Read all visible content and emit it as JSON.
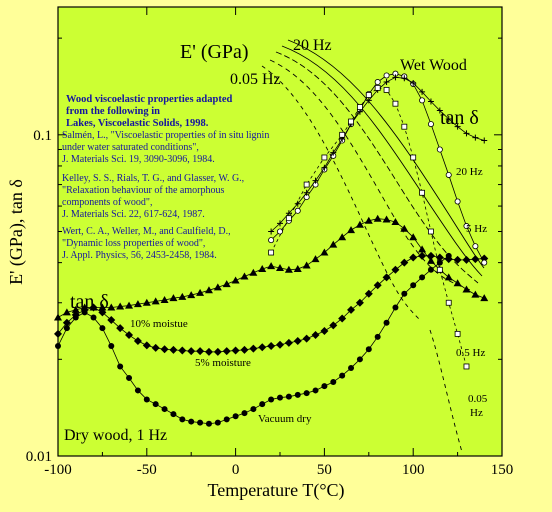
{
  "chart_data": {
    "type": "scatter",
    "xlabel": "Temperature T(°C)",
    "ylabel": "E' (GPa), tan δ",
    "xlim": [
      -100,
      150
    ],
    "ylim": [
      0.01,
      0.25
    ],
    "yscale": "log",
    "x_ticks": [
      "-100",
      "-50",
      "0",
      "50",
      "100",
      "150"
    ],
    "y_ticks": [
      "0.01",
      "0.1"
    ],
    "colors": {
      "background": "#ffff99",
      "plot_area": "#ccff33",
      "text_blue": "#1515a0"
    },
    "labels": {
      "eprime": "E' (GPa)",
      "freq_20_top": "20 Hz",
      "freq_005_top": "0.05 Hz",
      "wet_wood": "Wet Wood",
      "tan_delta_wet": "tan δ",
      "tan_delta_dry": "tan δ",
      "dry_wood": "Dry wood, 1 Hz",
      "freq_20": "20 Hz",
      "freq_5": "5 Hz",
      "freq_05": "0.5 Hz",
      "freq_005_a": "0.05",
      "freq_005_b": "Hz",
      "moist10": "10% moistue",
      "moist5": "5% moisture",
      "vacuum": "Vacuum dry"
    },
    "references": {
      "header": [
        "Wood viscoelastic properties adapted",
        "from the following in",
        "Lakes, Viscoelastic Solids, 1998."
      ],
      "ref1": [
        "Salmén, L., \"Viscoelastic properties of in situ  lignin",
        " under water saturated conditions\",",
        "J. Materials Sci. 19, 3090-3096, 1984."
      ],
      "ref2": [
        "Kelley, S. S., Rials, T. G., and Glasser, W. G.,",
        "\"Relaxation behaviour of the amorphous",
        " components of wood\",",
        "J. Materials Sci. 22, 617-624, 1987."
      ],
      "ref3": [
        "Wert, C. A., Weller, M., and Caulfield, D.,",
        "\"Dynamic loss properties of wood\",",
        "J. Appl. Physics, 56, 2453-2458, 1984."
      ]
    },
    "series": [
      {
        "marker": "circle-filled",
        "label": "Vacuum dry",
        "x": [
          -100,
          -95,
          -90,
          -85,
          -80,
          -75,
          -70,
          -65,
          -60,
          -55,
          -50,
          -45,
          -40,
          -35,
          -30,
          -25,
          -20,
          -15,
          -10,
          -5,
          0,
          5,
          10,
          15,
          20,
          25,
          30,
          35,
          40,
          45,
          50,
          55,
          60,
          65,
          70,
          75,
          80,
          85,
          90,
          95,
          100,
          105,
          110,
          115,
          120
        ],
        "y": [
          0.022,
          0.025,
          0.027,
          0.028,
          0.027,
          0.025,
          0.022,
          0.019,
          0.0175,
          0.016,
          0.015,
          0.0145,
          0.014,
          0.0135,
          0.013,
          0.0128,
          0.0127,
          0.0126,
          0.0127,
          0.013,
          0.0133,
          0.0136,
          0.014,
          0.0145,
          0.015,
          0.0152,
          0.0153,
          0.0155,
          0.0157,
          0.016,
          0.0165,
          0.017,
          0.0178,
          0.0188,
          0.02,
          0.0215,
          0.0235,
          0.026,
          0.029,
          0.032,
          0.034,
          0.036,
          0.038,
          0.04,
          0.042
        ]
      },
      {
        "marker": "diamond-filled",
        "label": "5% moisture",
        "x": [
          -100,
          -95,
          -90,
          -85,
          -80,
          -75,
          -70,
          -65,
          -60,
          -55,
          -50,
          -45,
          -40,
          -35,
          -30,
          -25,
          -20,
          -15,
          -10,
          -5,
          0,
          5,
          10,
          15,
          20,
          25,
          30,
          35,
          40,
          45,
          50,
          55,
          60,
          65,
          70,
          75,
          80,
          85,
          90,
          95,
          100,
          105,
          110,
          115,
          120,
          125,
          130,
          135,
          140
        ],
        "y": [
          0.024,
          0.026,
          0.0275,
          0.0285,
          0.029,
          0.028,
          0.0265,
          0.025,
          0.0238,
          0.0228,
          0.0221,
          0.0217,
          0.0215,
          0.0214,
          0.0213,
          0.0212,
          0.0212,
          0.0211,
          0.0211,
          0.0212,
          0.0213,
          0.0214,
          0.0216,
          0.0218,
          0.022,
          0.0222,
          0.0225,
          0.0228,
          0.0232,
          0.0238,
          0.0245,
          0.0255,
          0.0268,
          0.0285,
          0.03,
          0.032,
          0.034,
          0.036,
          0.038,
          0.04,
          0.0415,
          0.042,
          0.042,
          0.0415,
          0.041,
          0.0408,
          0.0408,
          0.041,
          0.0412
        ]
      },
      {
        "marker": "triangle-filled",
        "label": "10% moistue",
        "x": [
          -100,
          -95,
          -90,
          -85,
          -80,
          -75,
          -70,
          -65,
          -60,
          -55,
          -50,
          -45,
          -40,
          -35,
          -30,
          -25,
          -20,
          -15,
          -10,
          -5,
          0,
          5,
          10,
          15,
          20,
          25,
          30,
          35,
          40,
          45,
          50,
          55,
          60,
          65,
          70,
          75,
          80,
          85,
          90,
          95,
          100,
          105,
          110,
          115,
          120,
          125,
          130,
          135,
          140
        ],
        "y": [
          0.027,
          0.028,
          0.0285,
          0.029,
          0.029,
          0.029,
          0.029,
          0.0292,
          0.0294,
          0.0297,
          0.03,
          0.0303,
          0.0306,
          0.031,
          0.0313,
          0.0317,
          0.0322,
          0.0328,
          0.0335,
          0.0343,
          0.0352,
          0.0362,
          0.0372,
          0.0382,
          0.039,
          0.0385,
          0.038,
          0.0382,
          0.0392,
          0.041,
          0.043,
          0.0455,
          0.048,
          0.0505,
          0.0525,
          0.054,
          0.0548,
          0.0545,
          0.0535,
          0.051,
          0.048,
          0.044,
          0.0405,
          0.038,
          0.036,
          0.0345,
          0.033,
          0.0318,
          0.031
        ]
      },
      {
        "marker": "circle-open",
        "label": "5 Hz",
        "x": [
          20,
          25,
          30,
          35,
          40,
          45,
          50,
          55,
          60,
          65,
          70,
          75,
          80,
          85,
          90,
          95,
          100,
          105,
          110,
          115,
          120,
          125,
          130,
          135,
          140
        ],
        "y": [
          0.047,
          0.05,
          0.054,
          0.058,
          0.064,
          0.07,
          0.078,
          0.086,
          0.096,
          0.108,
          0.12,
          0.134,
          0.146,
          0.153,
          0.155,
          0.152,
          0.144,
          0.128,
          0.108,
          0.09,
          0.075,
          0.062,
          0.052,
          0.045,
          0.04
        ]
      },
      {
        "marker": "plus",
        "label": "20 Hz",
        "x": [
          20,
          25,
          30,
          35,
          40,
          45,
          50,
          55,
          60,
          65,
          70,
          75,
          80,
          85,
          90,
          95,
          100,
          105,
          110,
          115,
          120,
          125,
          130,
          135,
          140
        ],
        "y": [
          0.05,
          0.053,
          0.057,
          0.061,
          0.066,
          0.072,
          0.079,
          0.088,
          0.097,
          0.108,
          0.118,
          0.128,
          0.138,
          0.146,
          0.151,
          0.15,
          0.145,
          0.136,
          0.127,
          0.119,
          0.112,
          0.106,
          0.101,
          0.098,
          0.096
        ]
      },
      {
        "marker": "square-open",
        "label": "0.05 Hz",
        "x": [
          20,
          30,
          40,
          50,
          60,
          65,
          70,
          75,
          80,
          85,
          90,
          95,
          100,
          105,
          110,
          115,
          120,
          125,
          130
        ],
        "y": [
          0.043,
          0.055,
          0.07,
          0.085,
          0.1,
          0.11,
          0.122,
          0.133,
          0.14,
          0.138,
          0.125,
          0.106,
          0.085,
          0.066,
          0.05,
          0.038,
          0.03,
          0.024,
          0.019
        ]
      }
    ]
  }
}
